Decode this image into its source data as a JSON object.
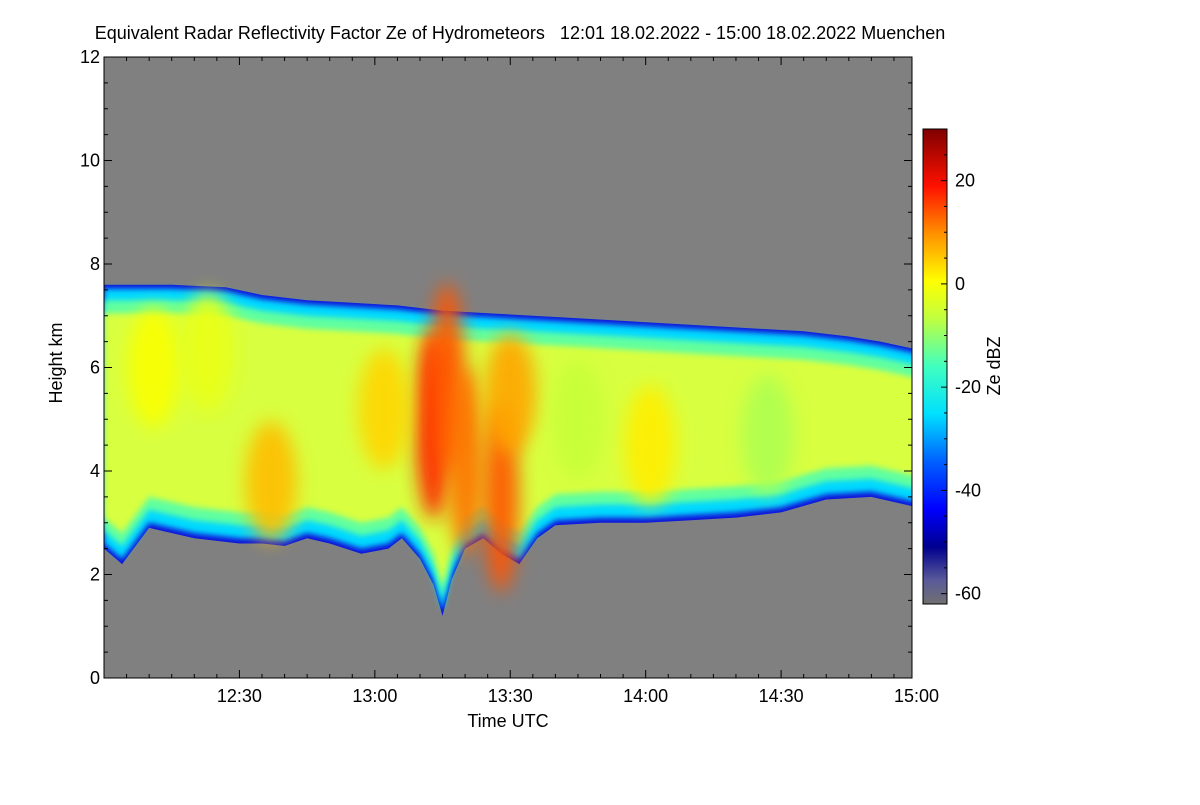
{
  "chart_data": {
    "type": "heatmap",
    "title": "Equivalent Radar Reflectivity Factor Ze of Hydrometeors   12:01 18.02.2022 - 15:00 18.02.2022 Muenchen",
    "xlabel": "Time UTC",
    "ylabel": "Height km",
    "xlim": [
      "12:01",
      "15:00"
    ],
    "ylim": [
      0,
      12
    ],
    "x_ticks": [
      "12:30",
      "13:00",
      "13:30",
      "14:00",
      "14:30",
      "15:00"
    ],
    "x_tick_minutes": [
      30,
      60,
      90,
      120,
      150,
      180
    ],
    "y_ticks": [
      0,
      2,
      4,
      6,
      8,
      10,
      12
    ],
    "colorbar": {
      "label": "Ze dBZ",
      "range": [
        -62,
        30
      ],
      "ticks": [
        20,
        0,
        -20,
        -40,
        -60
      ],
      "colormap": "jet"
    },
    "no_signal_color": "#808080",
    "echo_top_km": [
      [
        0,
        7.6
      ],
      [
        15,
        7.6
      ],
      [
        27,
        7.55
      ],
      [
        35,
        7.4
      ],
      [
        45,
        7.3
      ],
      [
        55,
        7.25
      ],
      [
        65,
        7.2
      ],
      [
        75,
        7.1
      ],
      [
        85,
        7.05
      ],
      [
        95,
        7.0
      ],
      [
        105,
        6.95
      ],
      [
        115,
        6.9
      ],
      [
        125,
        6.85
      ],
      [
        135,
        6.8
      ],
      [
        145,
        6.75
      ],
      [
        155,
        6.7
      ],
      [
        165,
        6.6
      ],
      [
        172,
        6.5
      ],
      [
        180,
        6.35
      ]
    ],
    "echo_base_km": [
      [
        0,
        2.5
      ],
      [
        4,
        2.2
      ],
      [
        10,
        2.9
      ],
      [
        20,
        2.7
      ],
      [
        30,
        2.6
      ],
      [
        35,
        2.6
      ],
      [
        40,
        2.55
      ],
      [
        45,
        2.7
      ],
      [
        50,
        2.6
      ],
      [
        57,
        2.4
      ],
      [
        63,
        2.5
      ],
      [
        66,
        2.7
      ],
      [
        70,
        2.3
      ],
      [
        73,
        1.8
      ],
      [
        75,
        1.2
      ],
      [
        77,
        1.9
      ],
      [
        80,
        2.5
      ],
      [
        84,
        2.7
      ],
      [
        88,
        2.4
      ],
      [
        92,
        2.2
      ],
      [
        96,
        2.7
      ],
      [
        100,
        2.95
      ],
      [
        110,
        3.0
      ],
      [
        120,
        3.0
      ],
      [
        130,
        3.05
      ],
      [
        140,
        3.1
      ],
      [
        150,
        3.2
      ],
      [
        160,
        3.45
      ],
      [
        170,
        3.5
      ],
      [
        180,
        3.3
      ]
    ],
    "reflectivity_cores": [
      {
        "t": 73,
        "h": 4.9,
        "dbz": 18
      },
      {
        "t": 76,
        "h": 5.8,
        "dbz": 14
      },
      {
        "t": 80,
        "h": 4.2,
        "dbz": 12
      },
      {
        "t": 88,
        "h": 3.5,
        "dbz": 14
      },
      {
        "t": 90,
        "h": 5.5,
        "dbz": 8
      },
      {
        "t": 62,
        "h": 5.2,
        "dbz": 4
      },
      {
        "t": 37,
        "h": 3.8,
        "dbz": 6
      },
      {
        "t": 11,
        "h": 6.0,
        "dbz": 0
      },
      {
        "t": 23,
        "h": 6.3,
        "dbz": -2
      },
      {
        "t": 121,
        "h": 4.5,
        "dbz": 2
      },
      {
        "t": 105,
        "h": 5.0,
        "dbz": -6
      },
      {
        "t": 147,
        "h": 4.7,
        "dbz": -8
      }
    ]
  }
}
